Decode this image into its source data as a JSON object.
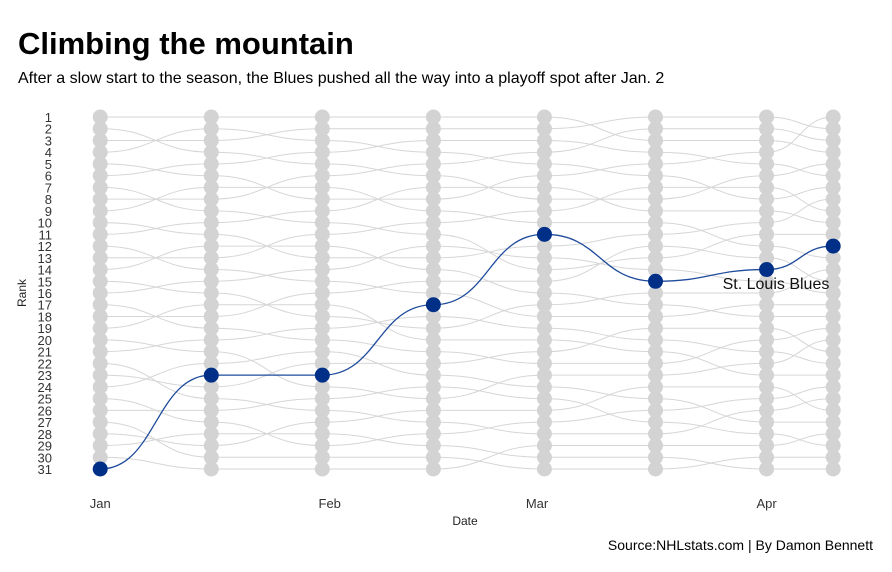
{
  "title": "Climbing the mountain",
  "subtitle": "After a slow start to the season, the Blues pushed all the way into a playoff spot after Jan. 2",
  "source": "Source:NHLstats.com | By Damon Bennett",
  "chart_data": {
    "type": "line",
    "subtype": "bump",
    "xlabel": "Date",
    "ylabel": "Rank",
    "x": [
      "2019-01-01",
      "2019-01-16",
      "2019-01-31",
      "2019-02-15",
      "2019-03-02",
      "2019-03-17",
      "2019-04-01",
      "2019-04-10"
    ],
    "x_ticks": [
      {
        "label": "Jan",
        "date": "2019-01-01"
      },
      {
        "label": "Feb",
        "date": "2019-02-01"
      },
      {
        "label": "Mar",
        "date": "2019-03-01"
      },
      {
        "label": "Apr",
        "date": "2019-04-01"
      }
    ],
    "x_range": [
      "2018-12-29",
      "2019-04-12"
    ],
    "ranks": [
      1,
      2,
      3,
      4,
      5,
      6,
      7,
      8,
      9,
      10,
      11,
      12,
      13,
      14,
      15,
      16,
      17,
      18,
      19,
      20,
      21,
      22,
      23,
      24,
      25,
      26,
      27,
      28,
      29,
      30,
      31
    ],
    "y_reversed": true,
    "grid": false,
    "highlight": {
      "name": "St. Louis Blues",
      "values": [
        31,
        23,
        23,
        17,
        11,
        15,
        14,
        12
      ],
      "color": "#002f87"
    },
    "other_color": "#d3d3d3"
  }
}
